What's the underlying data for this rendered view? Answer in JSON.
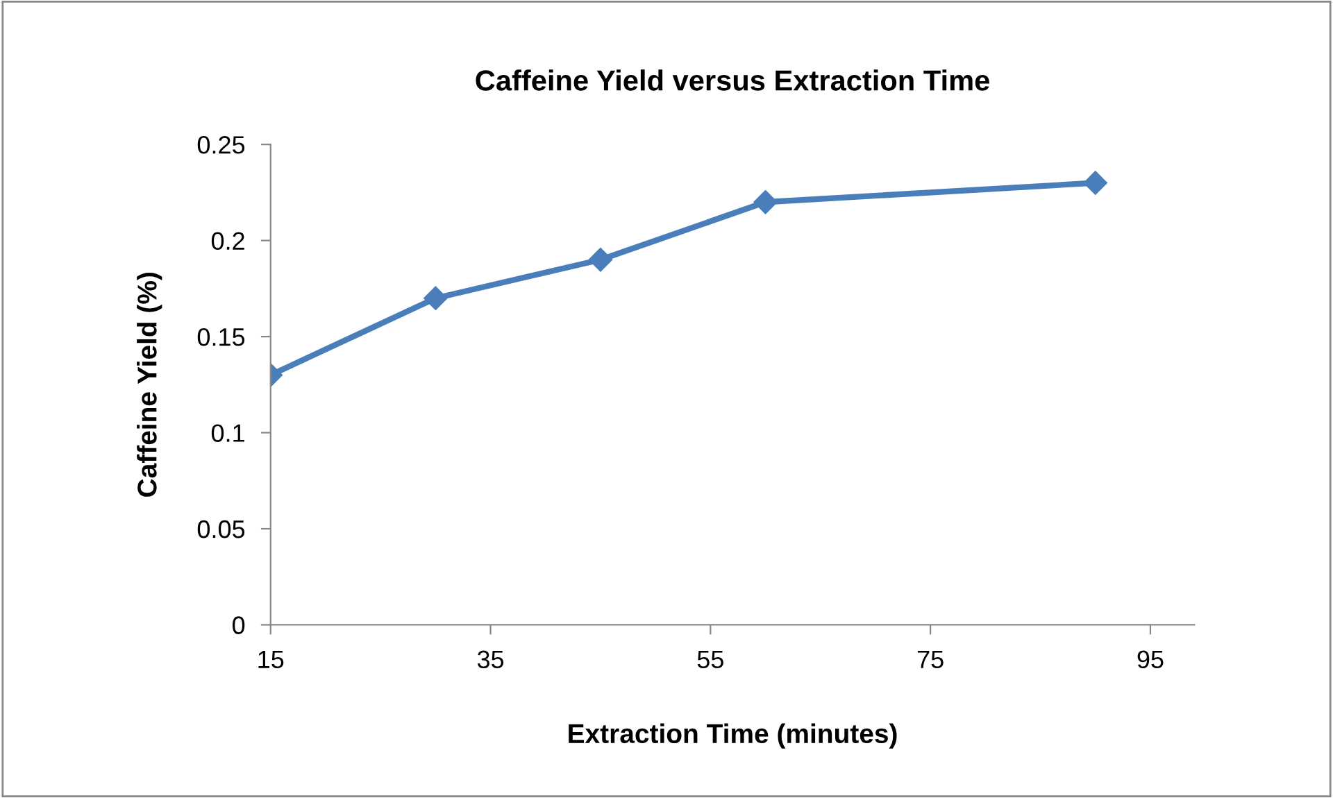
{
  "chart_data": {
    "type": "line",
    "title": "Caffeine Yield versus Extraction Time",
    "xlabel": "Extraction Time (minutes)",
    "ylabel": "Caffeine Yield (%)",
    "x": [
      15,
      30,
      45,
      60,
      90
    ],
    "series": [
      {
        "color": "#4a7ebb",
        "values": [
          0.13,
          0.17,
          0.19,
          0.22,
          0.23
        ]
      }
    ],
    "xlim": [
      15,
      99
    ],
    "xticks": [
      15,
      35,
      55,
      75,
      95
    ],
    "ylim": [
      0,
      0.25
    ],
    "yticks": [
      0,
      0.05,
      0.1,
      0.15,
      0.2,
      0.25
    ],
    "grid": false,
    "legend": false,
    "marker": "diamond",
    "line_style": "solid"
  }
}
